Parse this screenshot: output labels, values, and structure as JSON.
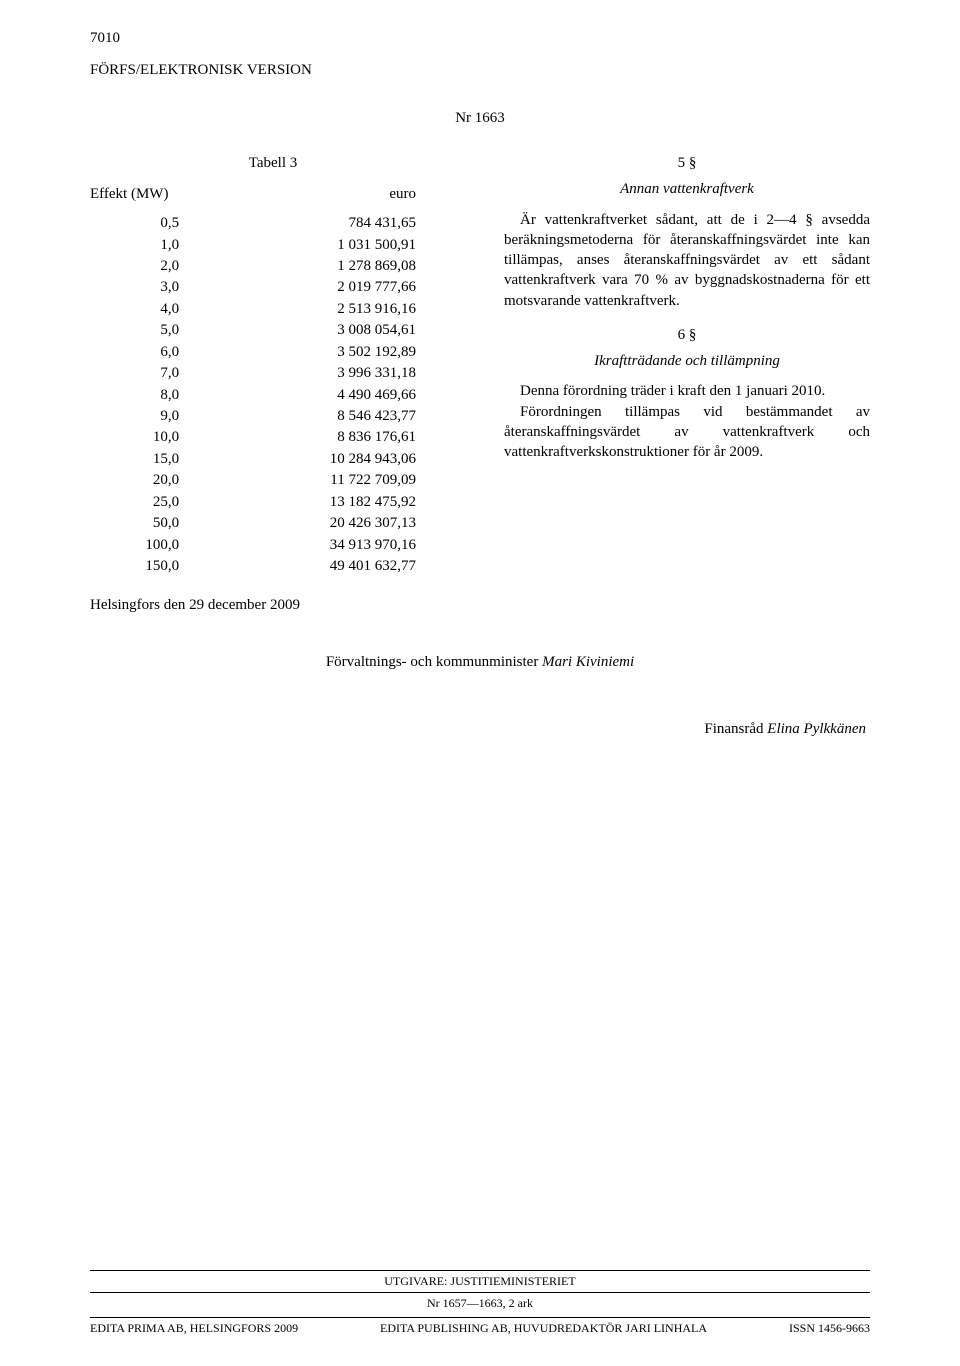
{
  "page_number": "7010",
  "header_line": "FÖRFS/ELEKTRONISK VERSION",
  "nr_line": "Nr 1663",
  "left": {
    "tabell_title": "Tabell 3",
    "col1_header": "Effekt (MW)",
    "col2_header": "euro",
    "rows": [
      [
        "0,5",
        "784 431,65"
      ],
      [
        "1,0",
        "1 031 500,91"
      ],
      [
        "2,0",
        "1 278 869,08"
      ],
      [
        "3,0",
        "2 019 777,66"
      ],
      [
        "4,0",
        "2 513 916,16"
      ],
      [
        "5,0",
        "3 008 054,61"
      ],
      [
        "6,0",
        "3 502 192,89"
      ],
      [
        "7,0",
        "3 996 331,18"
      ],
      [
        "8,0",
        "4 490 469,66"
      ],
      [
        "9,0",
        "8 546 423,77"
      ],
      [
        "10,0",
        "8 836 176,61"
      ],
      [
        "15,0",
        "10 284 943,06"
      ],
      [
        "20,0",
        "11 722 709,09"
      ],
      [
        "25,0",
        "13 182 475,92"
      ],
      [
        "50,0",
        "20 426 307,13"
      ],
      [
        "100,0",
        "34 913 970,16"
      ],
      [
        "150,0",
        "49 401 632,77"
      ]
    ]
  },
  "right": {
    "sec5_num": "5 §",
    "sec5_title": "Annan vattenkraftverk",
    "sec5_p1": "Är vattenkraftverket sådant, att de i 2—4 § avsedda beräkningsmetoderna för återanskaffningsvärdet inte kan tillämpas, anses återanskaffningsvärdet av ett sådant vattenkraftverk vara 70 % av byggnadskostnaderna för ett motsvarande vattenkraftverk.",
    "sec6_num": "6 §",
    "sec6_title": "Ikraftträdande och tillämpning",
    "sec6_p1": "Denna förordning träder i kraft den 1 januari 2010.",
    "sec6_p2": "Förordningen tillämpas vid bestämmandet av återanskaffningsvärdet av vattenkraftverk och vattenkraftverkskonstruktioner för år 2009."
  },
  "signed_place_date": "Helsingfors den 29 december 2009",
  "minister_title": "Förvaltnings- och kommunminister ",
  "minister_name": "Mari Kiviniemi",
  "counsel_title": "Finansråd ",
  "counsel_name": "Elina Pylkkänen",
  "footer": {
    "publisher": "UTGIVARE: JUSTITIEMINISTERIET",
    "mid": "Nr 1657—1663, 2 ark",
    "left": "EDITA PRIMA AB, HELSINGFORS 2009",
    "center": "EDITA PUBLISHING AB, HUVUDREDAKTÖR JARI LINHALA",
    "right": "ISSN 1456-9663"
  }
}
